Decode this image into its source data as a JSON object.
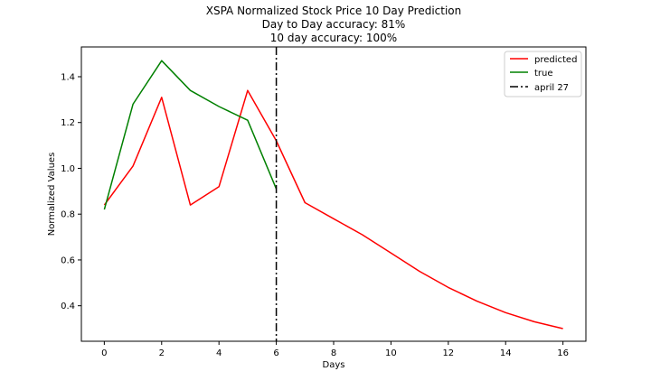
{
  "chart_data": {
    "type": "line",
    "title": [
      "XSPA Normalized Stock Price 10 Day Prediction",
      "Day to Day accuracy: 81%",
      "10 day accuracy: 100%"
    ],
    "xlabel": "Days",
    "ylabel": "Normalized Values",
    "xlim": [
      -0.8,
      16.8
    ],
    "ylim": [
      0.245,
      1.53
    ],
    "xticks": [
      0,
      2,
      4,
      6,
      8,
      10,
      12,
      14,
      16
    ],
    "yticks": [
      0.4,
      0.6,
      0.8,
      1.0,
      1.2,
      1.4
    ],
    "ytick_labels": [
      "0.4",
      "0.6",
      "0.8",
      "1.0",
      "1.2",
      "1.4"
    ],
    "grid": false,
    "legend_position": "top-right",
    "series": [
      {
        "name": "predicted",
        "color": "#ff0000",
        "style": "solid",
        "x": [
          0,
          1,
          2,
          3,
          4,
          5,
          6,
          7,
          8,
          9,
          10,
          11,
          12,
          13,
          14,
          15,
          16
        ],
        "y": [
          0.84,
          1.01,
          1.31,
          0.84,
          0.92,
          1.34,
          1.12,
          0.85,
          0.78,
          0.71,
          0.63,
          0.55,
          0.48,
          0.42,
          0.37,
          0.33,
          0.3
        ]
      },
      {
        "name": "true",
        "color": "#008000",
        "style": "solid",
        "x": [
          0,
          1,
          2,
          3,
          4,
          5,
          6
        ],
        "y": [
          0.82,
          1.28,
          1.47,
          1.34,
          1.27,
          1.21,
          0.91
        ]
      }
    ],
    "vlines": [
      {
        "name": "april 27",
        "x": 6,
        "color": "#000000",
        "style": "dashdot"
      }
    ]
  }
}
